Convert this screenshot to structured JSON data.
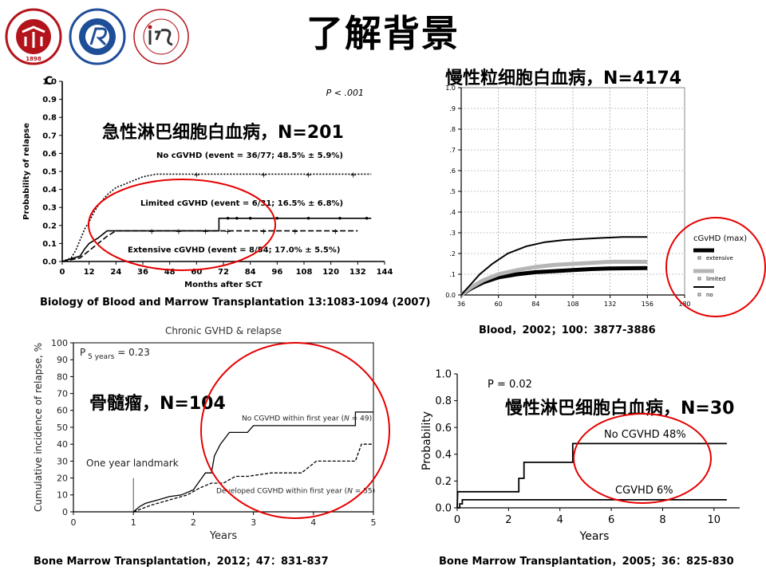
{
  "slide": {
    "title": "了解背景",
    "logos": [
      {
        "icon": "peking-university-seal-icon",
        "ring_text": "PEKING UNIVERSITY",
        "year": "1898",
        "color": "#b3141b"
      },
      {
        "icon": "peking-university-peoples-hospital-seal-icon",
        "ring_text": "北京大学人民医院",
        "color": "#1f4e99"
      },
      {
        "icon": "institute-of-hematology-seal-icon",
        "ring_text": "INSTITUTE OF HEMATOLOGY PEKING UNIVERSITY",
        "color": "#b3141b"
      }
    ]
  },
  "chart_data": [
    {
      "id": "tl",
      "type": "line",
      "heading": "急性淋巴细胞白血病，N=201",
      "panel_label": "C",
      "pvalue": "P < .001",
      "xlabel": "Months after SCT",
      "ylabel": "Probability of relapse",
      "xlim": [
        0,
        144
      ],
      "ylim": [
        0,
        1
      ],
      "xticks": [
        0,
        12,
        24,
        36,
        48,
        60,
        72,
        84,
        96,
        108,
        120,
        132,
        144
      ],
      "yticks": [
        0,
        0.1,
        0.2,
        0.3,
        0.4,
        0.5,
        0.6,
        0.7,
        0.8,
        0.9,
        1.0
      ],
      "ytick_labels": [
        "0.0",
        "0.1",
        "0.2",
        "0.3",
        "0.4",
        "0.5",
        "0.6",
        "0.7",
        "0.8",
        "0.9",
        "1.0"
      ],
      "series": [
        {
          "name": "No cGVHD (event = 36/77; 48.5% ± 5.9%)",
          "style": "dashed",
          "points": [
            [
              0,
              0
            ],
            [
              4,
              0.02
            ],
            [
              6,
              0.06
            ],
            [
              8,
              0.12
            ],
            [
              10,
              0.18
            ],
            [
              12,
              0.22
            ],
            [
              14,
              0.27
            ],
            [
              16,
              0.31
            ],
            [
              18,
              0.34
            ],
            [
              20,
              0.37
            ],
            [
              22,
              0.39
            ],
            [
              24,
              0.41
            ],
            [
              28,
              0.43
            ],
            [
              32,
              0.45
            ],
            [
              36,
              0.47
            ],
            [
              42,
              0.485
            ],
            [
              138,
              0.485
            ]
          ]
        },
        {
          "name": "Limited cGVHD (event = 6/31; 16.5% ± 6.8%)",
          "style": "solid",
          "points": [
            [
              0,
              0
            ],
            [
              8,
              0.03
            ],
            [
              10,
              0.07
            ],
            [
              12,
              0.1
            ],
            [
              16,
              0.13
            ],
            [
              20,
              0.17
            ],
            [
              70,
              0.17
            ],
            [
              70,
              0.24
            ],
            [
              138,
              0.24
            ]
          ]
        },
        {
          "name": "Extensive cGVHD (event = 8/54; 17.0% ± 5.5%)",
          "style": "longdash",
          "points": [
            [
              0,
              0
            ],
            [
              8,
              0.02
            ],
            [
              12,
              0.06
            ],
            [
              16,
              0.1
            ],
            [
              20,
              0.14
            ],
            [
              24,
              0.17
            ],
            [
              132,
              0.17
            ]
          ]
        }
      ],
      "caption": "Biology of Blood and Marrow Transplantation 13:1083-1094 (2007)"
    },
    {
      "id": "tr",
      "type": "line",
      "heading": "慢性粒细胞白血病，N=4174",
      "xlim": [
        36,
        180
      ],
      "ylim": [
        0,
        1
      ],
      "xticks": [
        36,
        60,
        84,
        108,
        132,
        156,
        180
      ],
      "yticks": [
        0,
        0.1,
        0.2,
        0.3,
        0.4,
        0.5,
        0.6,
        0.7,
        0.8,
        0.9,
        1.0
      ],
      "ytick_labels": [
        "0.0",
        ".1",
        ".2",
        ".3",
        ".4",
        ".5",
        ".6",
        ".7",
        ".8",
        ".9",
        "1.0"
      ],
      "grid": true,
      "legend_title": "cGvHD (max)",
      "legend_position": "right",
      "series": [
        {
          "name": "extensive",
          "color": "#000000",
          "width": 5,
          "points": [
            [
              36,
              0
            ],
            [
              42,
              0.03
            ],
            [
              50,
              0.06
            ],
            [
              60,
              0.085
            ],
            [
              72,
              0.1
            ],
            [
              84,
              0.11
            ],
            [
              96,
              0.115
            ],
            [
              108,
              0.12
            ],
            [
              120,
              0.125
            ],
            [
              132,
              0.128
            ],
            [
              156,
              0.13
            ]
          ]
        },
        {
          "name": "limited",
          "color": "#b5b5b5",
          "width": 5,
          "points": [
            [
              36,
              0
            ],
            [
              42,
              0.035
            ],
            [
              50,
              0.07
            ],
            [
              60,
              0.1
            ],
            [
              72,
              0.12
            ],
            [
              84,
              0.135
            ],
            [
              96,
              0.145
            ],
            [
              108,
              0.15
            ],
            [
              120,
              0.155
            ],
            [
              132,
              0.16
            ],
            [
              156,
              0.16
            ]
          ]
        },
        {
          "name": "no",
          "color": "#000000",
          "width": 2,
          "points": [
            [
              36,
              0
            ],
            [
              42,
              0.05
            ],
            [
              48,
              0.1
            ],
            [
              56,
              0.15
            ],
            [
              66,
              0.2
            ],
            [
              78,
              0.235
            ],
            [
              90,
              0.255
            ],
            [
              102,
              0.265
            ],
            [
              114,
              0.27
            ],
            [
              126,
              0.275
            ],
            [
              140,
              0.28
            ],
            [
              156,
              0.28
            ]
          ]
        }
      ],
      "caption": "Blood，2002；100：3877-3886"
    },
    {
      "id": "bl",
      "type": "line",
      "heading": "骨髓瘤，N=104",
      "title": "Chronic GVHD & relapse",
      "pvalue_main": "P",
      "pvalue_sub": "5 years",
      "pvalue_value": "= 0.23",
      "xlabel": "Years",
      "ylabel": "Cumulative incidence of relapse, %",
      "xlim": [
        0,
        5
      ],
      "ylim": [
        0,
        100
      ],
      "xticks": [
        0,
        1,
        2,
        3,
        4,
        5
      ],
      "yticks": [
        0,
        10,
        20,
        30,
        40,
        50,
        60,
        70,
        80,
        90,
        100
      ],
      "landmark_label": "One year landmark",
      "landmark_x": 1,
      "series": [
        {
          "name_main": "No CGVHD within first year (",
          "name_italic": "N",
          "name_tail": " = 49)",
          "style": "solid",
          "points": [
            [
              1,
              0
            ],
            [
              1.1,
              3
            ],
            [
              1.2,
              5
            ],
            [
              1.4,
              7
            ],
            [
              1.6,
              9
            ],
            [
              1.8,
              10
            ],
            [
              2.0,
              13
            ],
            [
              2.1,
              18
            ],
            [
              2.2,
              23
            ],
            [
              2.3,
              23
            ],
            [
              2.35,
              33
            ],
            [
              2.45,
              40
            ],
            [
              2.6,
              47
            ],
            [
              2.7,
              47
            ],
            [
              2.9,
              47
            ],
            [
              3.0,
              51
            ],
            [
              3.1,
              51
            ],
            [
              4.7,
              51
            ],
            [
              4.7,
              59
            ],
            [
              5,
              59
            ]
          ]
        },
        {
          "name_main": "Developed CGVHD within first year (",
          "name_italic": "N",
          "name_tail": " = 55)",
          "style": "dashed",
          "points": [
            [
              1,
              0
            ],
            [
              1.15,
              2
            ],
            [
              1.3,
              4
            ],
            [
              1.5,
              6
            ],
            [
              1.7,
              8
            ],
            [
              1.9,
              10
            ],
            [
              2.1,
              14
            ],
            [
              2.3,
              17
            ],
            [
              2.5,
              17
            ],
            [
              2.7,
              21
            ],
            [
              2.9,
              21
            ],
            [
              3.3,
              23
            ],
            [
              3.8,
              23
            ],
            [
              4.05,
              30
            ],
            [
              4.2,
              30
            ],
            [
              4.7,
              30
            ],
            [
              4.8,
              40
            ],
            [
              5,
              40
            ]
          ]
        }
      ],
      "caption": "Bone Marrow Transplantation，2012；47：831-837"
    },
    {
      "id": "br",
      "type": "line",
      "heading": "慢性淋巴细胞白血病，N=30",
      "pvalue": "P = 0.02",
      "xlabel": "Years",
      "ylabel": "Probability",
      "xlim": [
        0,
        11
      ],
      "ylim": [
        0,
        1
      ],
      "xticks": [
        0,
        2,
        4,
        6,
        8,
        10
      ],
      "yticks": [
        0,
        0.2,
        0.4,
        0.6,
        0.8,
        1.0
      ],
      "ytick_labels": [
        "0.0",
        "0.2",
        "0.4",
        "0.6",
        "0.8",
        "1.0"
      ],
      "series": [
        {
          "name": "No CGVHD 48%",
          "points": [
            [
              0,
              0
            ],
            [
              0.02,
              0.12
            ],
            [
              2.4,
              0.12
            ],
            [
              2.4,
              0.22
            ],
            [
              2.6,
              0.22
            ],
            [
              2.6,
              0.34
            ],
            [
              4.5,
              0.34
            ],
            [
              4.5,
              0.48
            ],
            [
              10.5,
              0.48
            ]
          ]
        },
        {
          "name": "CGVHD 6%",
          "points": [
            [
              0,
              0
            ],
            [
              0.1,
              0
            ],
            [
              0.1,
              0.03
            ],
            [
              0.2,
              0.03
            ],
            [
              0.2,
              0.06
            ],
            [
              10.5,
              0.06
            ]
          ]
        }
      ],
      "caption": "Bone Marrow Transplantation，2005；36：825-830"
    }
  ]
}
